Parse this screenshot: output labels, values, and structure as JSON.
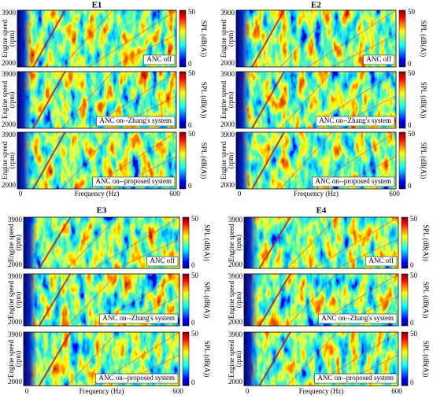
{
  "axes": {
    "y_label_lines": [
      "Engine speed",
      "(rpm)"
    ],
    "y_ticks": [
      "3900",
      "2000"
    ],
    "x_ticks": [
      "0",
      "600"
    ],
    "x_label": "Frequency (Hz)",
    "colorbar_label": "SPL (dB(A))",
    "colorbar_ticks": [
      "50",
      "0"
    ]
  },
  "panels": [
    {
      "title": "E1",
      "subplots": [
        {
          "label": "ANC off"
        },
        {
          "label": "ANC on--Zhang's system"
        },
        {
          "label": "ANC on--proposed system"
        }
      ]
    },
    {
      "title": "E2",
      "subplots": [
        {
          "label": "ANC off"
        },
        {
          "label": "ANC on--Zhang's system"
        },
        {
          "label": "ANC on--proposed system"
        }
      ]
    },
    {
      "title": "E3",
      "subplots": [
        {
          "label": "ANC off"
        },
        {
          "label": "ANC on--Zhang's system"
        },
        {
          "label": "ANC on--proposed system"
        }
      ]
    },
    {
      "title": "E4",
      "subplots": [
        {
          "label": "ANC off"
        },
        {
          "label": "ANC on--Zhang's system"
        },
        {
          "label": "ANC on--proposed system"
        }
      ]
    }
  ]
}
